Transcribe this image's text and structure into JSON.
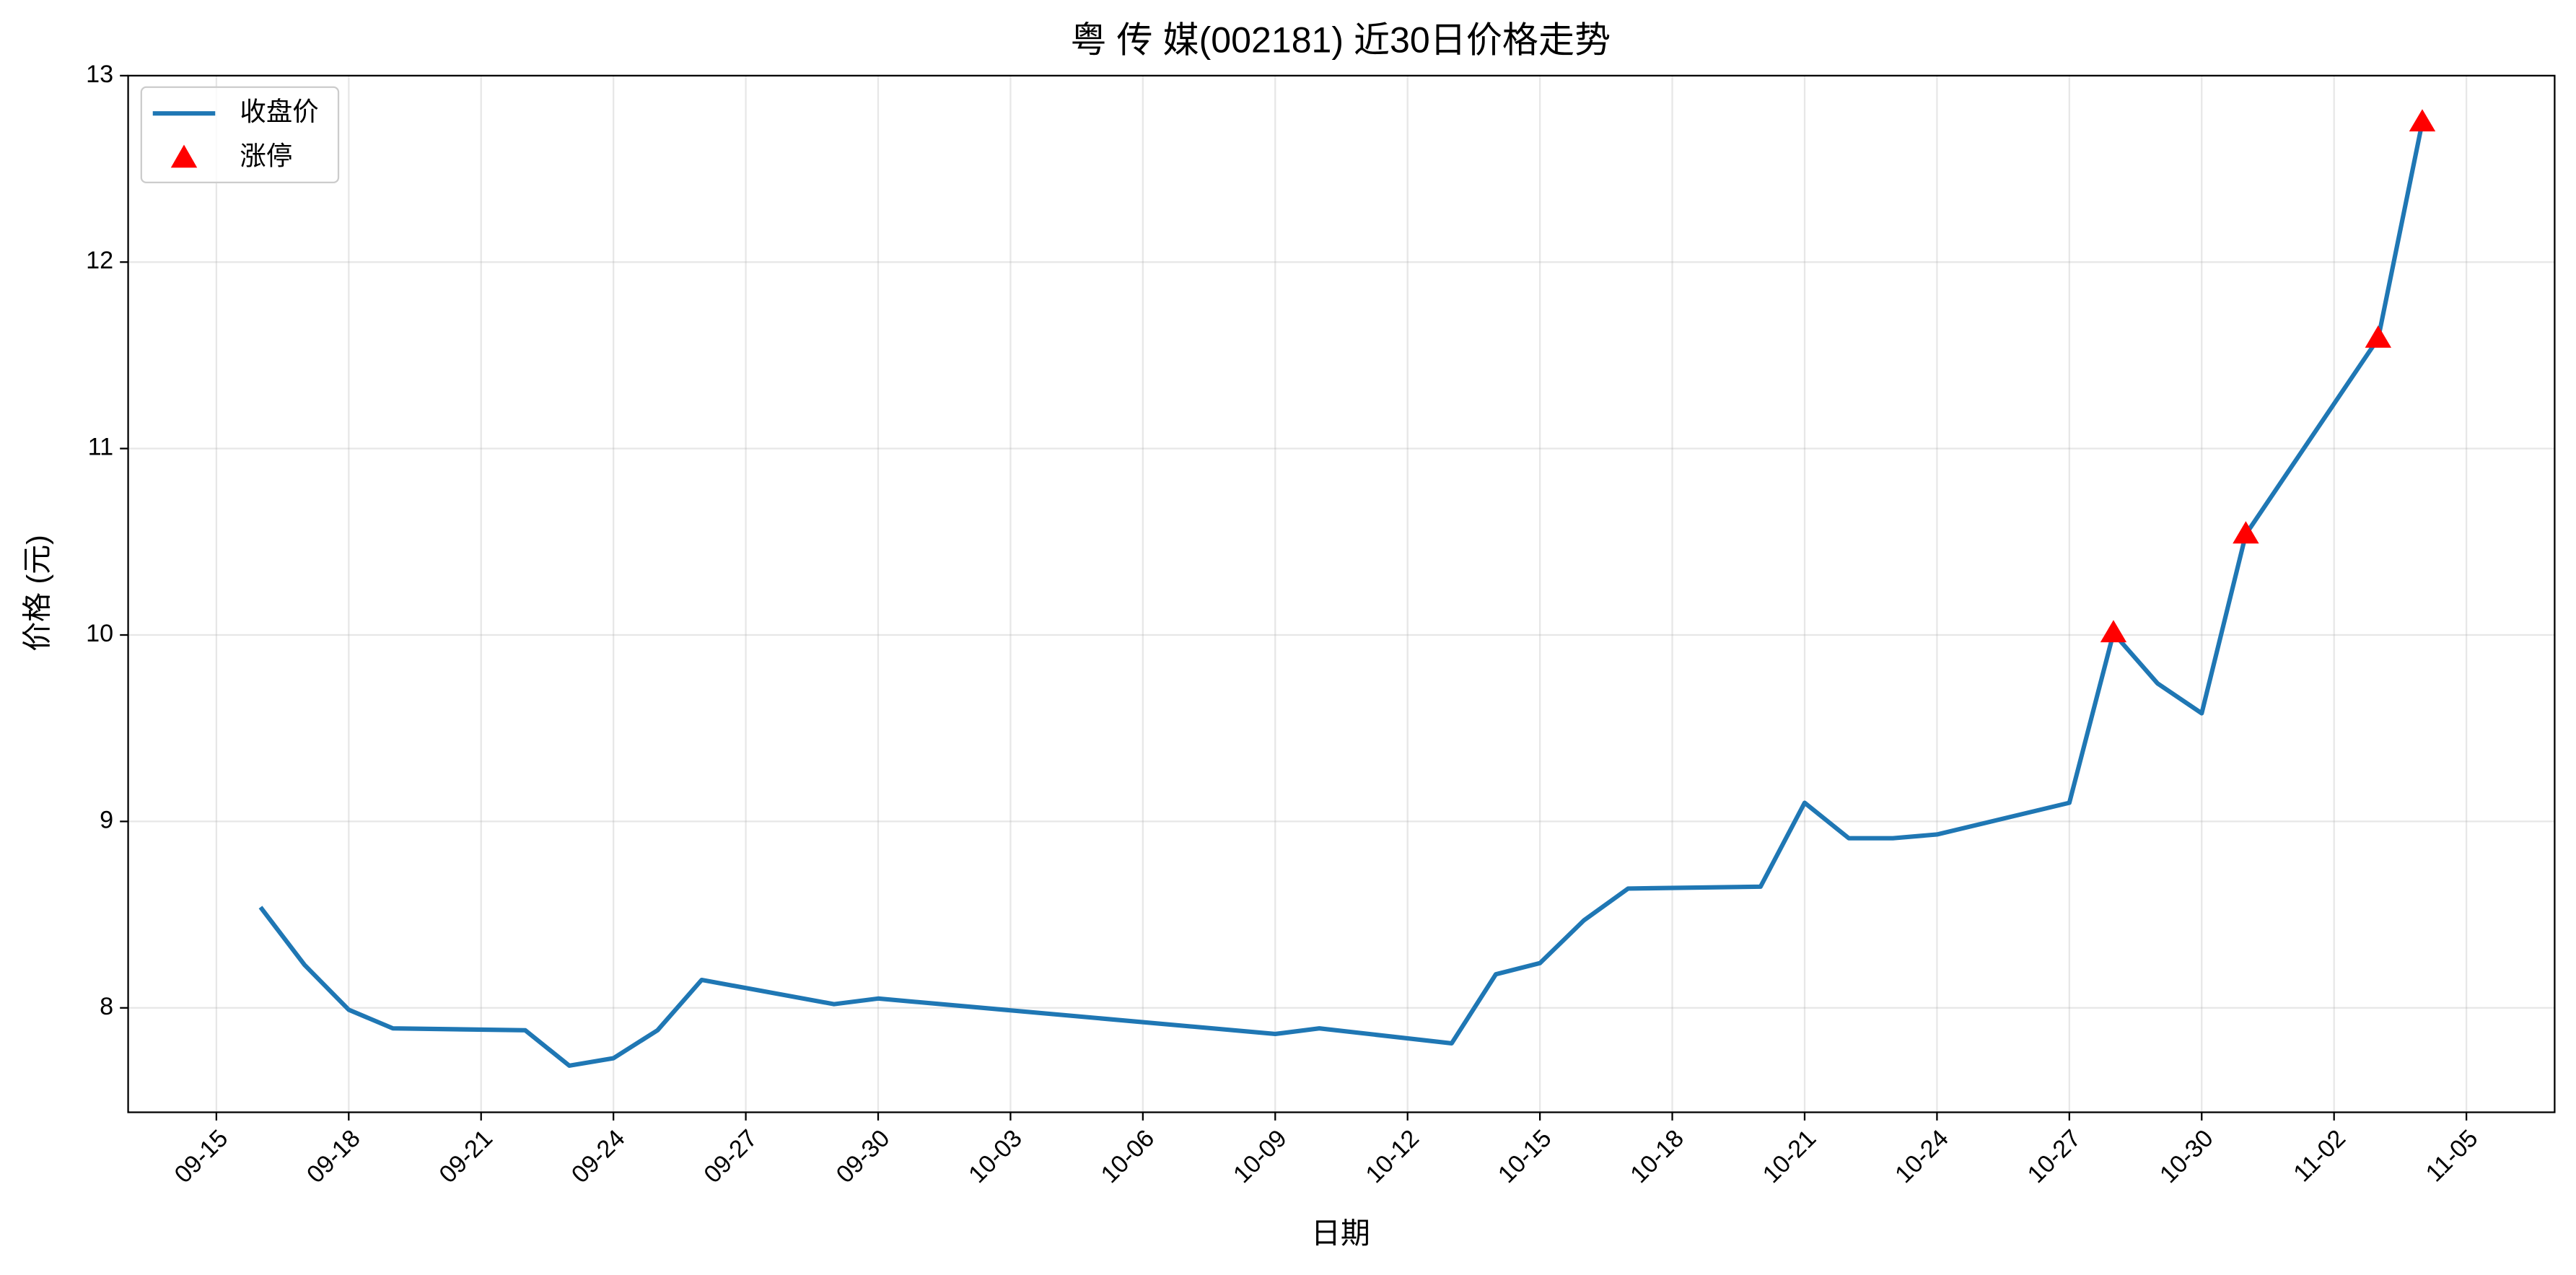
{
  "chart_data": {
    "type": "line",
    "title": "粤 传 媒(002181) 近30日价格走势",
    "xlabel": "日期",
    "ylabel": "价格 (元)",
    "x": [
      "09-16",
      "09-17",
      "09-18",
      "09-19",
      "09-22",
      "09-23",
      "09-24",
      "09-25",
      "09-26",
      "09-29",
      "09-30",
      "10-09",
      "10-10",
      "10-13",
      "10-14",
      "10-15",
      "10-16",
      "10-17",
      "10-20",
      "10-21",
      "10-22",
      "10-23",
      "10-24",
      "10-27",
      "10-28",
      "10-29",
      "10-30",
      "10-31",
      "11-03",
      "11-04"
    ],
    "series": [
      {
        "name": "收盘价",
        "color": "#1f77b4",
        "kind": "line",
        "values": [
          8.54,
          8.23,
          7.99,
          7.89,
          7.88,
          7.69,
          7.73,
          7.88,
          8.15,
          8.02,
          8.05,
          7.86,
          7.89,
          7.81,
          8.18,
          8.24,
          8.47,
          8.64,
          8.65,
          9.1,
          8.91,
          8.91,
          8.93,
          9.1,
          10.01,
          9.74,
          9.58,
          10.54,
          11.59,
          12.75
        ]
      },
      {
        "name": "涨停",
        "color": "#ff0000",
        "kind": "scatter",
        "marker": "triangle",
        "values": [
          null,
          null,
          null,
          null,
          null,
          null,
          null,
          null,
          null,
          null,
          null,
          null,
          null,
          null,
          null,
          null,
          null,
          null,
          null,
          null,
          null,
          null,
          null,
          null,
          10.01,
          null,
          null,
          10.54,
          11.59,
          12.75
        ]
      }
    ],
    "xlim": [
      "09-13",
      "11-07"
    ],
    "xticks": [
      "09-15",
      "09-18",
      "09-21",
      "09-24",
      "09-27",
      "09-30",
      "10-03",
      "10-06",
      "10-09",
      "10-12",
      "10-15",
      "10-18",
      "10-21",
      "10-24",
      "10-27",
      "10-30",
      "11-02",
      "11-05"
    ],
    "ylim": [
      7.44,
      13.0
    ],
    "yticks": [
      8,
      9,
      10,
      11,
      12,
      13
    ],
    "grid": true,
    "legend": "upper left"
  }
}
